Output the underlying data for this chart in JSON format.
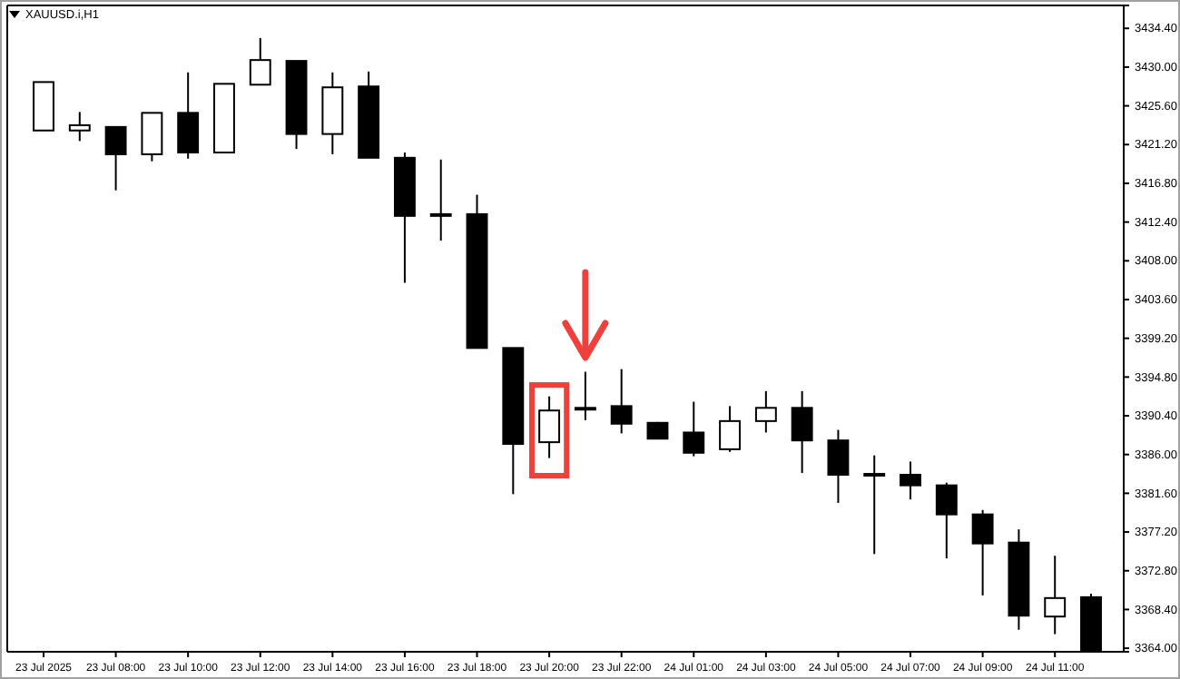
{
  "chart_data": {
    "type": "candlestick",
    "title": "XAUUSD.i,H1",
    "categories": [
      "23 Jul 2025",
      null,
      "23 Jul 08:00",
      null,
      "23 Jul 10:00",
      null,
      "23 Jul 12:00",
      null,
      "23 Jul 14:00",
      null,
      "23 Jul 16:00",
      null,
      "23 Jul 18:00",
      null,
      "23 Jul 20:00",
      null,
      "23 Jul 22:00",
      null,
      "24 Jul 01:00",
      null,
      "24 Jul 03:00",
      null,
      "24 Jul 05:00",
      null,
      "24 Jul 07:00",
      null,
      "24 Jul 09:00",
      null,
      "24 Jul 11:00",
      null
    ],
    "ohlc": [
      [
        3422.8,
        3428.3,
        3422.8,
        3428.3
      ],
      [
        3422.8,
        3424.9,
        3421.6,
        3423.4
      ],
      [
        3423.2,
        3423.2,
        3416.0,
        3420.1
      ],
      [
        3420.1,
        3424.8,
        3419.3,
        3424.8
      ],
      [
        3424.8,
        3429.4,
        3419.6,
        3420.3
      ],
      [
        3420.3,
        3428.1,
        3420.3,
        3428.1
      ],
      [
        3428.0,
        3433.3,
        3428.0,
        3430.8
      ],
      [
        3430.7,
        3430.7,
        3420.7,
        3422.4
      ],
      [
        3422.4,
        3429.4,
        3420.1,
        3427.7
      ],
      [
        3427.8,
        3429.5,
        3419.7,
        3419.7
      ],
      [
        3419.7,
        3420.3,
        3405.5,
        3413.1
      ],
      [
        3413.1,
        3419.5,
        3410.3,
        3413.3
      ],
      [
        3413.3,
        3415.5,
        3398.1,
        3398.1
      ],
      [
        3398.1,
        3398.1,
        3381.5,
        3387.2
      ],
      [
        3387.4,
        3392.6,
        3385.6,
        3391.0
      ],
      [
        3391.3,
        3395.4,
        3389.9,
        3391.1
      ],
      [
        3391.5,
        3395.7,
        3388.4,
        3389.5
      ],
      [
        3389.6,
        3389.7,
        3387.8,
        3387.8
      ],
      [
        3388.5,
        3392.0,
        3385.8,
        3386.2
      ],
      [
        3386.6,
        3391.5,
        3386.3,
        3389.8
      ],
      [
        3389.8,
        3393.2,
        3388.5,
        3391.3
      ],
      [
        3391.3,
        3393.2,
        3383.9,
        3387.6
      ],
      [
        3387.6,
        3388.8,
        3380.5,
        3383.7
      ],
      [
        3383.8,
        3385.9,
        3374.7,
        3383.6
      ],
      [
        3383.7,
        3385.2,
        3380.9,
        3382.5
      ],
      [
        3382.5,
        3382.8,
        3374.2,
        3379.2
      ],
      [
        3379.2,
        3379.7,
        3370.0,
        3375.9
      ],
      [
        3376.0,
        3377.5,
        3366.1,
        3367.7
      ],
      [
        3367.6,
        3374.5,
        3365.6,
        3369.7
      ],
      [
        3369.8,
        3370.2,
        3363.8,
        3363.8
      ]
    ],
    "ylim": [
      3363.6,
      3437.0
    ],
    "yticks": [
      {
        "value": 3364,
        "label": "3364.00"
      },
      {
        "value": 3368.4,
        "label": "3368.40"
      },
      {
        "value": 3372.8,
        "label": "3372.80"
      },
      {
        "value": 3377.2,
        "label": "3377.20"
      },
      {
        "value": 3381.6,
        "label": "3381.60"
      },
      {
        "value": 3386,
        "label": "3386.00"
      },
      {
        "value": 3390.4,
        "label": "3390.40"
      },
      {
        "value": 3394.8,
        "label": "3394.80"
      },
      {
        "value": 3399.2,
        "label": "3399.20"
      },
      {
        "value": 3403.6,
        "label": "3403.60"
      },
      {
        "value": 3408,
        "label": "3408.00"
      },
      {
        "value": 3412.4,
        "label": "3412.40"
      },
      {
        "value": 3416.8,
        "label": "3416.80"
      },
      {
        "value": 3421.2,
        "label": "3421.20"
      },
      {
        "value": 3425.6,
        "label": "3425.60"
      },
      {
        "value": 3430,
        "label": "3430.00"
      },
      {
        "value": 3434.4,
        "label": "3434.40"
      }
    ]
  }
}
